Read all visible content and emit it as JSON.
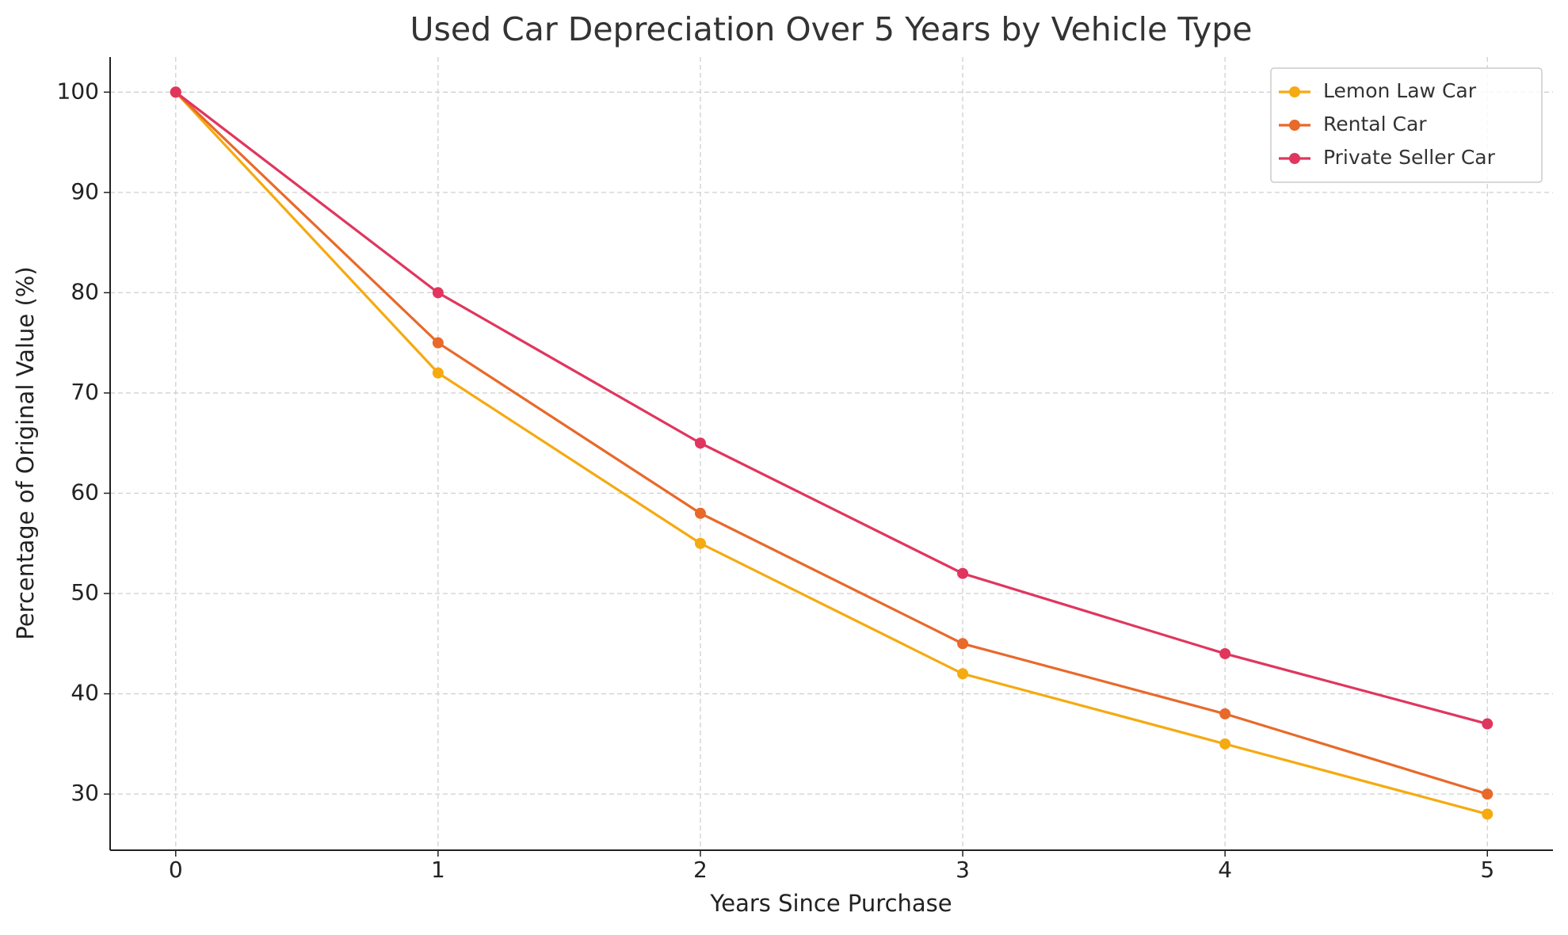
{
  "chart_data": {
    "type": "line",
    "title": "Used Car Depreciation Over 5 Years by Vehicle Type",
    "x_label": "Years Since Purchase",
    "y_label": "Percentage of Original Value (%)",
    "x": [
      0,
      1,
      2,
      3,
      4,
      5
    ],
    "series": [
      {
        "name": "Lemon Law Car",
        "color": "#f5aa10",
        "values": [
          100,
          72,
          55,
          42,
          35,
          28
        ]
      },
      {
        "name": "Rental Car",
        "color": "#e8692a",
        "values": [
          100,
          75,
          58,
          45,
          38,
          30
        ]
      },
      {
        "name": "Private Seller Car",
        "color": "#e0365e",
        "values": [
          100,
          80,
          65,
          52,
          44,
          37
        ]
      }
    ],
    "xlim": [
      -0.25,
      5.25
    ],
    "ylim": [
      24.4,
      103.5
    ],
    "xticks": [
      0,
      1,
      2,
      3,
      4,
      5
    ],
    "yticks": [
      30,
      40,
      50,
      60,
      70,
      80,
      90,
      100
    ],
    "grid": true,
    "legend": "upper right"
  }
}
